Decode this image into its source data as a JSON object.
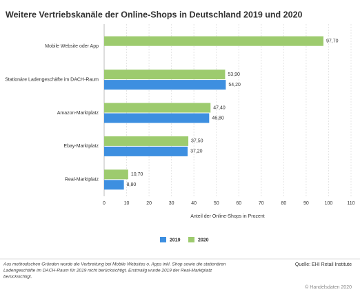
{
  "chart_data": {
    "type": "bar",
    "orientation": "horizontal",
    "title": "Weitere Vertriebskanäle der Online-Shops in Deutschland 2019 und 2020",
    "categories": [
      "Mobile Website oder App",
      "Stationäre Ladengeschäfte im DACH-Raum",
      "Amazon-Marktplatz",
      "Ebay-Marktplatz",
      "Real-Marktplatz"
    ],
    "series": [
      {
        "name": "2019",
        "color": "#3d8fe0",
        "values": [
          null,
          54.2,
          46.8,
          37.2,
          8.8
        ],
        "value_labels": [
          null,
          "54,20",
          "46,80",
          "37,20",
          "8,80"
        ]
      },
      {
        "name": "2020",
        "color": "#9dcb6e",
        "values": [
          97.7,
          53.9,
          47.4,
          37.5,
          10.7
        ],
        "value_labels": [
          "97,70",
          "53,90",
          "47,40",
          "37,50",
          "10,70"
        ]
      }
    ],
    "xlabel": "Anteil der Online-Shops in Prozent",
    "xlim": [
      0,
      110
    ],
    "xticks": [
      0,
      10,
      20,
      30,
      40,
      50,
      60,
      70,
      80,
      90,
      100,
      110
    ],
    "grid": true,
    "note": [
      "Aus methodischen Gründen wurde die Verbreitung bei Mobile Websites o. Apps inkl. Shop sowie die stationären",
      "Ladengeschäfte im DACH-Raum für 2019 nicht berücksichtigt. Erstmalig wurde 2019 der Real-Marktplatz",
      "berücksichtigt."
    ],
    "source": "Quelle: EHI Retail Institute",
    "copyright": "© Handelsdaten 2020"
  }
}
